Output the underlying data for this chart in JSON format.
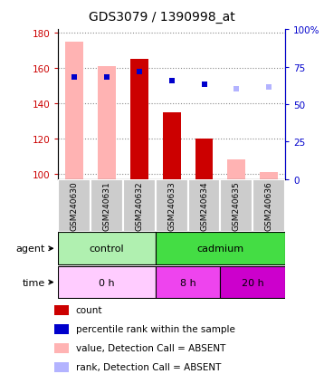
{
  "title": "GDS3079 / 1390998_at",
  "samples": [
    "GSM240630",
    "GSM240631",
    "GSM240632",
    "GSM240633",
    "GSM240634",
    "GSM240635",
    "GSM240636"
  ],
  "ylim_left": [
    97,
    182
  ],
  "ylim_right": [
    0,
    100
  ],
  "yticks_left": [
    100,
    120,
    140,
    160,
    180
  ],
  "yticks_right": [
    0,
    25,
    50,
    75,
    100
  ],
  "count_values": [
    null,
    null,
    165,
    135,
    120,
    null,
    null
  ],
  "rank_values": [
    155,
    155,
    158,
    153,
    151,
    null,
    null
  ],
  "absent_value_bars": [
    175,
    161,
    null,
    null,
    null,
    108,
    101
  ],
  "absent_rank_dots": [
    null,
    null,
    null,
    null,
    null,
    148,
    149
  ],
  "agent_groups": [
    {
      "label": "control",
      "start": 0,
      "end": 3,
      "color": "#b0f0b0"
    },
    {
      "label": "cadmium",
      "start": 3,
      "end": 7,
      "color": "#44dd44"
    }
  ],
  "time_groups": [
    {
      "label": "0 h",
      "start": 0,
      "end": 3,
      "color": "#ffccff"
    },
    {
      "label": "8 h",
      "start": 3,
      "end": 5,
      "color": "#ee44ee"
    },
    {
      "label": "20 h",
      "start": 5,
      "end": 7,
      "color": "#cc00cc"
    }
  ],
  "count_color": "#cc0000",
  "rank_color": "#0000cc",
  "absent_value_color": "#ffb3b3",
  "absent_rank_color": "#b3b3ff",
  "left_axis_color": "#cc0000",
  "right_axis_color": "#0000cc",
  "bar_width": 0.55,
  "rank_marker_size": 5,
  "legend_items": [
    {
      "color": "#cc0000",
      "label": "count"
    },
    {
      "color": "#0000cc",
      "label": "percentile rank within the sample"
    },
    {
      "color": "#ffb3b3",
      "label": "value, Detection Call = ABSENT"
    },
    {
      "color": "#b3b3ff",
      "label": "rank, Detection Call = ABSENT"
    }
  ]
}
